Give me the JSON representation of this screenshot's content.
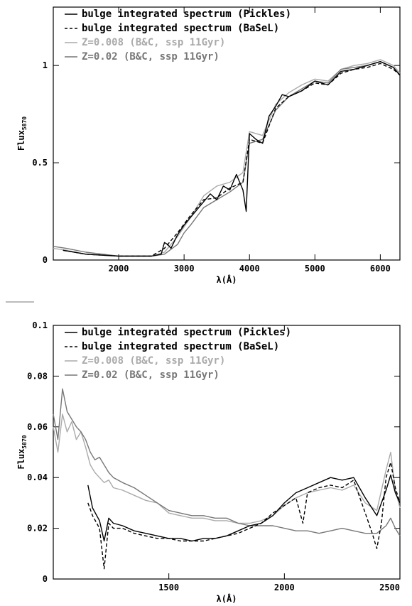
{
  "chart_data": [
    {
      "type": "line",
      "xlabel": "λ(Å)",
      "ylabel": "Flux",
      "ylabel_sub": "5870",
      "xlim": [
        1000,
        6300
      ],
      "ylim": [
        0,
        1.3
      ],
      "xticks": [
        2000,
        3000,
        4000,
        5000,
        6000
      ],
      "yticks": [
        0,
        0.5,
        1
      ],
      "ytick_labels": [
        "0",
        "0.5",
        "1"
      ],
      "legend_position": "top-left",
      "series": [
        {
          "name": "bulge integrated spectrum (Pickles)",
          "color": "#000000",
          "dash": "solid",
          "x": [
            1150,
            1500,
            2000,
            2500,
            2650,
            2700,
            2750,
            2800,
            2900,
            3000,
            3100,
            3200,
            3300,
            3400,
            3500,
            3600,
            3700,
            3800,
            3900,
            3950,
            4000,
            4100,
            4200,
            4300,
            4400,
            4500,
            4600,
            4800,
            5000,
            5200,
            5400,
            5600,
            5800,
            6000,
            6200,
            6300
          ],
          "y": [
            0.05,
            0.03,
            0.02,
            0.02,
            0.03,
            0.09,
            0.08,
            0.06,
            0.13,
            0.18,
            0.22,
            0.26,
            0.3,
            0.34,
            0.31,
            0.38,
            0.36,
            0.44,
            0.36,
            0.25,
            0.65,
            0.62,
            0.6,
            0.74,
            0.79,
            0.85,
            0.84,
            0.87,
            0.92,
            0.9,
            0.97,
            0.98,
            1.0,
            1.02,
            0.99,
            0.95
          ]
        },
        {
          "name": "bulge integrated spectrum (BaSeL)",
          "color": "#000000",
          "dash": "dashed",
          "x": [
            1150,
            1500,
            2000,
            2500,
            2700,
            2900,
            3100,
            3300,
            3500,
            3700,
            3900,
            4000,
            4200,
            4400,
            4600,
            4800,
            5000,
            5200,
            5400,
            5600,
            5800,
            6000,
            6200,
            6300
          ],
          "y": [
            0.05,
            0.03,
            0.02,
            0.02,
            0.06,
            0.14,
            0.23,
            0.31,
            0.32,
            0.37,
            0.4,
            0.62,
            0.6,
            0.78,
            0.84,
            0.87,
            0.91,
            0.9,
            0.96,
            0.98,
            0.99,
            1.01,
            0.98,
            0.95
          ]
        },
        {
          "name": "Z=0.008 (B&C, ssp 11Gyr)",
          "color": "#aaaaaa",
          "dash": "solid",
          "x": [
            1000,
            1200,
            1500,
            2000,
            2500,
            2700,
            2900,
            3100,
            3300,
            3500,
            3700,
            3900,
            4000,
            4200,
            4400,
            4600,
            4800,
            5000,
            5200,
            5400,
            5600,
            5800,
            6000,
            6200,
            6300
          ],
          "y": [
            0.06,
            0.05,
            0.03,
            0.02,
            0.02,
            0.04,
            0.12,
            0.22,
            0.33,
            0.38,
            0.4,
            0.45,
            0.66,
            0.64,
            0.8,
            0.86,
            0.9,
            0.93,
            0.92,
            0.98,
            1.0,
            1.01,
            1.03,
            1.0,
            0.96
          ]
        },
        {
          "name": "Z=0.02 (B&C, ssp 11Gyr)",
          "color": "#777777",
          "dash": "solid",
          "x": [
            1000,
            1200,
            1500,
            2000,
            2500,
            2700,
            2900,
            3000,
            3100,
            3300,
            3500,
            3700,
            3900,
            4000,
            4200,
            4400,
            4600,
            4800,
            5000,
            5200,
            5400,
            5600,
            5800,
            6000,
            6200,
            6300
          ],
          "y": [
            0.07,
            0.06,
            0.04,
            0.02,
            0.02,
            0.03,
            0.08,
            0.14,
            0.18,
            0.27,
            0.31,
            0.35,
            0.4,
            0.6,
            0.62,
            0.77,
            0.84,
            0.88,
            0.92,
            0.91,
            0.98,
            0.99,
            1.0,
            1.02,
            0.99,
            0.95
          ]
        }
      ]
    },
    {
      "type": "line",
      "xlabel": "λ(Å)",
      "ylabel": "Flux",
      "ylabel_sub": "5870",
      "xlim": [
        1000,
        2500
      ],
      "ylim": [
        0,
        0.1
      ],
      "xticks": [
        1500,
        2000,
        2500
      ],
      "yticks": [
        0,
        0.02,
        0.04,
        0.06,
        0.08,
        0.1
      ],
      "ytick_labels": [
        "0",
        "0.02",
        "0.04",
        "0.06",
        "0.08",
        "0.1"
      ],
      "legend_position": "top-left",
      "series": [
        {
          "name": "bulge integrated spectrum (Pickles)",
          "color": "#000000",
          "dash": "solid",
          "x": [
            1150,
            1170,
            1200,
            1220,
            1240,
            1260,
            1300,
            1350,
            1400,
            1450,
            1500,
            1550,
            1600,
            1650,
            1700,
            1750,
            1800,
            1850,
            1900,
            1950,
            2000,
            2050,
            2100,
            2150,
            2200,
            2250,
            2300,
            2350,
            2400,
            2440,
            2460,
            2480,
            2500
          ],
          "y": [
            0.037,
            0.028,
            0.023,
            0.015,
            0.024,
            0.022,
            0.021,
            0.019,
            0.018,
            0.017,
            0.016,
            0.016,
            0.015,
            0.016,
            0.016,
            0.017,
            0.019,
            0.021,
            0.022,
            0.025,
            0.03,
            0.034,
            0.036,
            0.038,
            0.04,
            0.039,
            0.04,
            0.032,
            0.025,
            0.035,
            0.041,
            0.034,
            0.03
          ]
        },
        {
          "name": "bulge integrated spectrum (BaSeL)",
          "color": "#000000",
          "dash": "dashed",
          "x": [
            1150,
            1170,
            1200,
            1220,
            1240,
            1260,
            1300,
            1350,
            1400,
            1450,
            1500,
            1550,
            1600,
            1650,
            1700,
            1750,
            1800,
            1850,
            1900,
            1950,
            2000,
            2050,
            2080,
            2100,
            2150,
            2200,
            2250,
            2300,
            2350,
            2380,
            2400,
            2420,
            2440,
            2460,
            2480,
            2500
          ],
          "y": [
            0.03,
            0.025,
            0.02,
            0.004,
            0.022,
            0.02,
            0.02,
            0.018,
            0.017,
            0.016,
            0.016,
            0.015,
            0.015,
            0.015,
            0.016,
            0.017,
            0.018,
            0.02,
            0.022,
            0.026,
            0.029,
            0.032,
            0.022,
            0.034,
            0.036,
            0.037,
            0.036,
            0.039,
            0.026,
            0.018,
            0.012,
            0.022,
            0.04,
            0.046,
            0.036,
            0.03
          ]
        },
        {
          "name": "Z=0.008 (B&C, ssp 11Gyr)",
          "color": "#aaaaaa",
          "dash": "solid",
          "x": [
            1000,
            1020,
            1040,
            1060,
            1080,
            1100,
            1120,
            1140,
            1160,
            1180,
            1200,
            1220,
            1240,
            1260,
            1300,
            1350,
            1400,
            1450,
            1500,
            1550,
            1600,
            1650,
            1700,
            1750,
            1800,
            1850,
            1900,
            1950,
            2000,
            2050,
            2100,
            2150,
            2200,
            2250,
            2300,
            2350,
            2400,
            2440,
            2460,
            2480,
            2500
          ],
          "y": [
            0.06,
            0.05,
            0.065,
            0.058,
            0.062,
            0.055,
            0.058,
            0.052,
            0.045,
            0.042,
            0.04,
            0.038,
            0.039,
            0.036,
            0.035,
            0.033,
            0.031,
            0.03,
            0.026,
            0.025,
            0.024,
            0.024,
            0.023,
            0.023,
            0.022,
            0.022,
            0.023,
            0.025,
            0.029,
            0.032,
            0.034,
            0.035,
            0.036,
            0.035,
            0.037,
            0.03,
            0.027,
            0.043,
            0.05,
            0.035,
            0.028
          ]
        },
        {
          "name": "Z=0.02 (B&C, ssp 11Gyr)",
          "color": "#777777",
          "dash": "solid",
          "x": [
            1000,
            1020,
            1040,
            1060,
            1080,
            1100,
            1120,
            1140,
            1160,
            1180,
            1200,
            1220,
            1240,
            1260,
            1300,
            1350,
            1400,
            1450,
            1500,
            1550,
            1600,
            1650,
            1700,
            1750,
            1800,
            1850,
            1900,
            1950,
            2000,
            2050,
            2100,
            2150,
            2200,
            2250,
            2300,
            2350,
            2400,
            2440,
            2460,
            2480,
            2500
          ],
          "y": [
            0.065,
            0.055,
            0.075,
            0.066,
            0.063,
            0.06,
            0.058,
            0.055,
            0.05,
            0.047,
            0.048,
            0.045,
            0.042,
            0.04,
            0.038,
            0.036,
            0.033,
            0.03,
            0.027,
            0.026,
            0.025,
            0.025,
            0.024,
            0.024,
            0.022,
            0.021,
            0.021,
            0.021,
            0.02,
            0.019,
            0.019,
            0.018,
            0.019,
            0.02,
            0.019,
            0.018,
            0.018,
            0.021,
            0.024,
            0.02,
            0.017
          ]
        }
      ]
    }
  ]
}
